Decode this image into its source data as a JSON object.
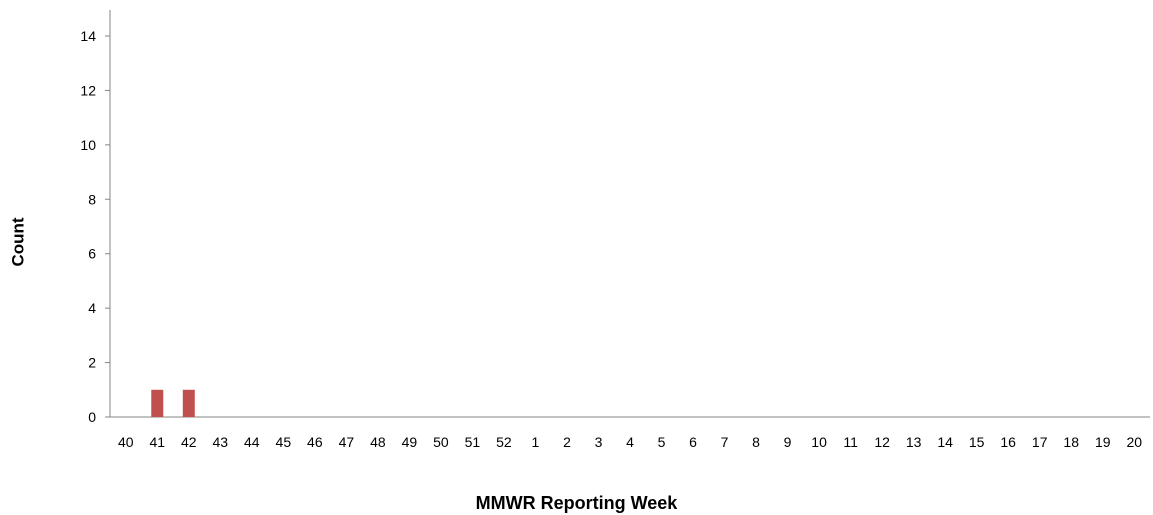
{
  "chart_data": {
    "type": "bar",
    "categories": [
      "40",
      "41",
      "42",
      "43",
      "44",
      "45",
      "46",
      "47",
      "48",
      "49",
      "50",
      "51",
      "52",
      "1",
      "2",
      "3",
      "4",
      "5",
      "6",
      "7",
      "8",
      "9",
      "10",
      "11",
      "12",
      "13",
      "14",
      "15",
      "16",
      "17",
      "18",
      "19",
      "20"
    ],
    "values": [
      0,
      1,
      1,
      0,
      0,
      0,
      0,
      0,
      0,
      0,
      0,
      0,
      0,
      0,
      0,
      0,
      0,
      0,
      0,
      0,
      0,
      0,
      0,
      0,
      0,
      0,
      0,
      0,
      0,
      0,
      0,
      0,
      0
    ],
    "xlabel": "MMWR Reporting Week",
    "ylabel": "Count",
    "ylim": [
      0,
      14
    ],
    "yticks": [
      0,
      2,
      4,
      6,
      8,
      10,
      12,
      14
    ],
    "bar_color": "#c0504d",
    "grid": false
  }
}
